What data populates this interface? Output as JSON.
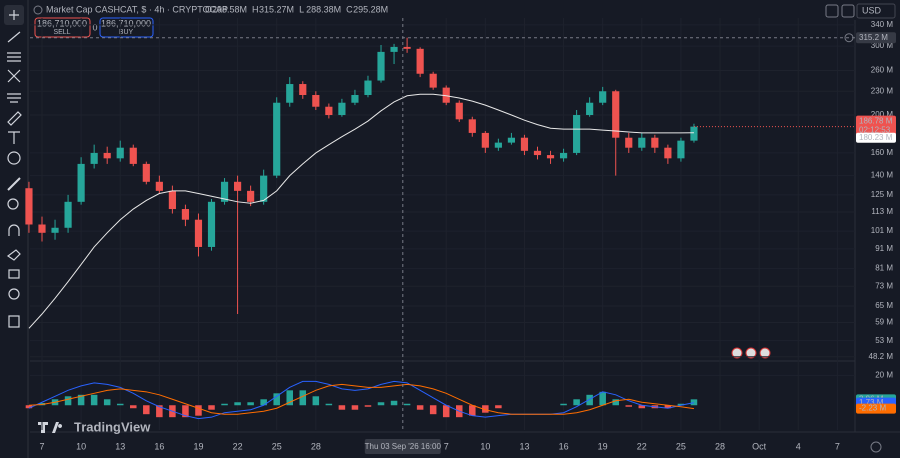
{
  "header": {
    "title": "Market Cap CASHCAT, $ · 4h · CRYPTOCAP",
    "readout": [
      {
        "key": "O",
        "value": 298.58,
        "label": "298.58M"
      },
      {
        "key": "H",
        "value": 315.27,
        "label": "315.27M"
      },
      {
        "key": "L",
        "value": 288.38,
        "label": "288.38M"
      },
      {
        "key": "C",
        "value": 295.28,
        "label": "295.28M"
      }
    ],
    "sell": {
      "price": "186,710,000",
      "label": "SELL"
    },
    "spread": "0",
    "buy": {
      "price": "186,710,000",
      "label": "BUY"
    },
    "currency": "USD"
  },
  "chart_data": {
    "type": "candlestick",
    "log_scale": true,
    "grid": true,
    "watermark": "TradingView",
    "up_color": "#26a69a",
    "down_color": "#ef5350",
    "ma_color": "#e8e8e8",
    "x": [
      0,
      1,
      2,
      3,
      4,
      5,
      6,
      7,
      8,
      9,
      10,
      11,
      12,
      13,
      14,
      15,
      16,
      17,
      18,
      19,
      20,
      21,
      22,
      23,
      24,
      25,
      26,
      27,
      28,
      29,
      30,
      31,
      32,
      33,
      34,
      35,
      36,
      37,
      38,
      39,
      40,
      41,
      42,
      43,
      44,
      45,
      46,
      47,
      48,
      49,
      50,
      51
    ],
    "open": [
      130,
      105,
      100,
      103,
      120,
      150,
      160,
      155,
      165,
      150,
      135,
      128,
      115,
      108,
      92,
      120,
      135,
      128,
      120,
      140,
      215,
      240,
      225,
      210,
      200,
      215,
      225,
      245,
      290,
      298.58,
      295.28,
      255,
      235,
      215,
      195,
      180,
      165,
      170,
      175,
      162,
      158,
      155,
      160,
      200,
      215,
      230,
      175,
      165,
      175,
      165,
      155,
      172
    ],
    "high": [
      135,
      110,
      108,
      125,
      156,
      168,
      166,
      172,
      168,
      152,
      140,
      132,
      118,
      112,
      122,
      138,
      140,
      132,
      145,
      222,
      250,
      244,
      230,
      214,
      220,
      232,
      252,
      302,
      304,
      315.27,
      298,
      258,
      238,
      218,
      198,
      182,
      174,
      180,
      178,
      166,
      162,
      164,
      206,
      222,
      236,
      232,
      180,
      180,
      178,
      168,
      175,
      190
    ],
    "low": [
      100,
      95,
      96,
      100,
      118,
      146,
      150,
      152,
      148,
      133,
      126,
      112,
      104,
      87,
      90,
      118,
      62,
      117,
      118,
      138,
      210,
      220,
      206,
      196,
      198,
      212,
      222,
      242,
      270,
      288.38,
      250,
      232,
      212,
      192,
      176,
      160,
      162,
      168,
      158,
      154,
      150,
      152,
      158,
      198,
      212,
      140,
      160,
      162,
      160,
      150,
      152,
      170
    ],
    "close": [
      105,
      100,
      103,
      120,
      150,
      160,
      155,
      165,
      150,
      135,
      128,
      115,
      108,
      92,
      120,
      135,
      128,
      120,
      140,
      215,
      240,
      225,
      210,
      200,
      215,
      225,
      245,
      290,
      298.58,
      295.28,
      255,
      235,
      215,
      195,
      180,
      165,
      170,
      175,
      162,
      158,
      155,
      160,
      200,
      215,
      230,
      175,
      165,
      175,
      165,
      155,
      172,
      186.78
    ],
    "ma": [
      57,
      62,
      68,
      75,
      83,
      92,
      100,
      108,
      115,
      121,
      126,
      128,
      128,
      126,
      124,
      122,
      120,
      119,
      121,
      128,
      140,
      150,
      160,
      168,
      176,
      184,
      193,
      205,
      216,
      224,
      226,
      226,
      224,
      221,
      217,
      212,
      206,
      200,
      194,
      189,
      185,
      184,
      184,
      184,
      183,
      182,
      181,
      180,
      180,
      180,
      180,
      180.23
    ],
    "xlim": [
      0.08,
      63.35
    ],
    "ylim": [
      47.3,
      354
    ],
    "yticks": [
      {
        "value": 340,
        "label": "340 M"
      },
      {
        "value": 300,
        "label": "300 M"
      },
      {
        "value": 260,
        "label": "260 M"
      },
      {
        "value": 230,
        "label": "230 M"
      },
      {
        "value": 200,
        "label": "200 M"
      },
      {
        "value": 160,
        "label": "160 M"
      },
      {
        "value": 140,
        "label": "140 M"
      },
      {
        "value": 125,
        "label": "125 M"
      },
      {
        "value": 113,
        "label": "113 M"
      },
      {
        "value": 101,
        "label": "101 M"
      },
      {
        "value": 91,
        "label": "91 M"
      },
      {
        "value": 81,
        "label": "81 M"
      },
      {
        "value": 73,
        "label": "73 M"
      },
      {
        "value": 65,
        "label": "65 M"
      },
      {
        "value": 59,
        "label": "59 M"
      },
      {
        "value": 53,
        "label": "53 M"
      },
      {
        "value": 48.2,
        "label": "48.2 M"
      }
    ],
    "xticks": [
      {
        "value": 1,
        "label": "7"
      },
      {
        "value": 4,
        "label": "10"
      },
      {
        "value": 7,
        "label": "13"
      },
      {
        "value": 10,
        "label": "16"
      },
      {
        "value": 13,
        "label": "19"
      },
      {
        "value": 16,
        "label": "22"
      },
      {
        "value": 19,
        "label": "25"
      },
      {
        "value": 22,
        "label": "28"
      },
      {
        "value": 32,
        "label": "7"
      },
      {
        "value": 35,
        "label": "10"
      },
      {
        "value": 38,
        "label": "13"
      },
      {
        "value": 41,
        "label": "16"
      },
      {
        "value": 44,
        "label": "19"
      },
      {
        "value": 47,
        "label": "22"
      },
      {
        "value": 50,
        "label": "25"
      },
      {
        "value": 53,
        "label": "28"
      },
      {
        "value": 56,
        "label": "Oct"
      },
      {
        "value": 59,
        "label": "4"
      },
      {
        "value": 62,
        "label": "7"
      }
    ],
    "crosshair": {
      "x": 28.67,
      "x_label": "Thu 03 Sep '26  16:00",
      "y": 315.2,
      "y_label": "315.2 M"
    },
    "last_price": {
      "value": 186.78,
      "label": "186.78 M",
      "countdown": "02:12:53"
    },
    "ma_label": {
      "value": 180.23,
      "label": "180.23 M"
    },
    "macd": {
      "ylim": [
        -16.6,
        29
      ],
      "yticks": [
        {
          "value": 20,
          "label": "20 M"
        }
      ],
      "histogram": {
        "pos_color": "#26a69a",
        "neg_color": "#ef5350",
        "values": [
          -2,
          1.5,
          4,
          6,
          7,
          7,
          4,
          1,
          -2,
          -6,
          -8,
          -8,
          -8,
          -7,
          -3,
          1,
          2,
          2,
          4,
          8,
          10,
          10,
          6,
          1,
          -3,
          -3,
          -1,
          2,
          3,
          1,
          -3,
          -6,
          -8,
          -8,
          -7,
          -5,
          -2,
          0,
          0,
          0,
          0,
          1,
          4,
          7,
          9,
          4,
          -1,
          -2,
          -2,
          -2,
          1,
          3.96
        ],
        "value_label": "3.96 M"
      },
      "series": [
        {
          "name": "MACD",
          "color": "#2962ff",
          "values": [
            -2,
            2,
            6,
            10,
            13,
            15,
            14,
            12,
            8,
            3,
            -1,
            -4,
            -7,
            -9,
            -8,
            -5,
            -4,
            -3,
            0,
            6,
            12,
            16,
            16,
            14,
            11,
            10,
            11,
            14,
            16,
            15,
            10,
            5,
            0,
            -4,
            -7,
            -8,
            -7,
            -6,
            -6,
            -6,
            -6,
            -5,
            -1,
            4,
            9,
            7,
            3,
            0,
            -1,
            -2,
            0,
            1.73
          ],
          "value_label": "1.73 M"
        },
        {
          "name": "Signal",
          "color": "#ff6d00",
          "values": [
            0,
            0.5,
            2,
            4,
            6,
            8,
            10,
            11,
            10,
            9,
            7,
            4,
            1,
            -2,
            -5,
            -6,
            -6,
            -5,
            -4,
            -2,
            2,
            6,
            10,
            13,
            14,
            13,
            12,
            12,
            13,
            14,
            13,
            11,
            8,
            4,
            0,
            -3,
            -5,
            -6,
            -6,
            -6,
            -6,
            -6,
            -5,
            -3,
            0,
            3,
            4,
            2,
            1,
            0,
            -1,
            -2.23
          ],
          "value_label": "-2.23 M"
        }
      ]
    }
  }
}
